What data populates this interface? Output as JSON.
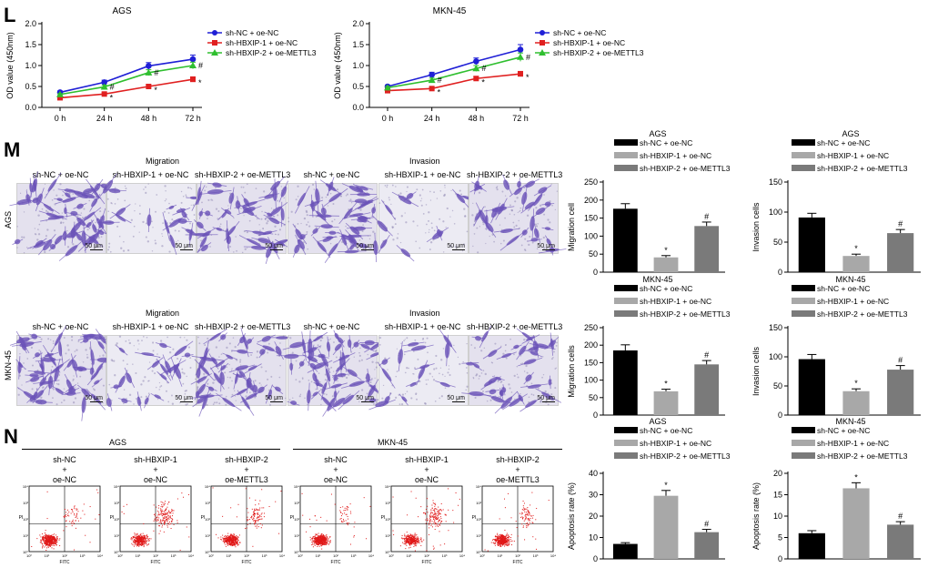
{
  "panel_labels": {
    "L": "L",
    "M": "M",
    "N": "N"
  },
  "colors": {
    "black": "#000000",
    "blue": "#1f1fd6",
    "red": "#e02020",
    "green": "#2fbf2f",
    "bar1": "#000000",
    "bar2": "#a8a8a8",
    "bar3": "#7a7a7a",
    "stain": "#6a52b8"
  },
  "m_panel": {
    "sections": [
      "Migration",
      "Invasion"
    ],
    "columns": [
      "sh-NC + oe-NC",
      "sh-HBXIP-1 + oe-NC",
      "sh-HBXIP-2 + oe-METTL3",
      "sh-NC + oe-NC",
      "sh-HBXIP-1 + oe-NC",
      "sh-HBXIP-2 + oe-METTL3"
    ],
    "rows": [
      "AGS",
      "MKN-45"
    ],
    "scale_bar": "50 μm"
  },
  "n_panel": {
    "cell_lines": [
      "AGS",
      "MKN-45"
    ],
    "headers": [
      [
        "sh-NC",
        "+",
        "oe-NC"
      ],
      [
        "sh-HBXIP-1",
        "+",
        "oe-NC"
      ],
      [
        "sh-HBXIP-2",
        "+",
        "oe-METTL3"
      ]
    ],
    "xaxis": "FITC",
    "yaxis": "PI",
    "ticks": [
      "10⁰",
      "10¹",
      "10²",
      "10³",
      "10⁴"
    ]
  },
  "chart_data": [
    {
      "type": "line",
      "title": "AGS",
      "xlabel": "",
      "ylabel": "OD value (450nm)",
      "x": [
        "0 h",
        "24 h",
        "48 h",
        "72 h"
      ],
      "ylim": [
        0.0,
        2.0
      ],
      "yticks": [
        0.0,
        0.5,
        1.0,
        1.5,
        2.0
      ],
      "legend_position": "right",
      "series": [
        {
          "name": "sh-NC + oe-NC",
          "color": "#1f1fd6",
          "marker": "circle",
          "values": [
            0.36,
            0.6,
            0.99,
            1.15
          ],
          "errors": [
            0.03,
            0.05,
            0.08,
            0.1
          ],
          "marks": [
            "",
            "",
            "",
            ""
          ]
        },
        {
          "name": "sh-HBXIP-1 + oe-NC",
          "color": "#e02020",
          "marker": "square",
          "values": [
            0.23,
            0.32,
            0.5,
            0.67
          ],
          "errors": [
            0.02,
            0.03,
            0.04,
            0.06
          ],
          "marks": [
            "",
            "*",
            "*",
            "*"
          ]
        },
        {
          "name": "sh-HBXIP-2 + oe-METTL3",
          "color": "#2fbf2f",
          "marker": "triangle",
          "values": [
            0.31,
            0.49,
            0.83,
            1.0
          ],
          "errors": [
            0.02,
            0.04,
            0.07,
            0.08
          ],
          "marks": [
            "",
            "#",
            "#",
            "#"
          ]
        }
      ]
    },
    {
      "type": "line",
      "title": "MKN-45",
      "xlabel": "",
      "ylabel": "OD value (450nm)",
      "x": [
        "0 h",
        "24 h",
        "48 h",
        "72 h"
      ],
      "ylim": [
        0.0,
        2.0
      ],
      "yticks": [
        0.0,
        0.5,
        1.0,
        1.5,
        2.0
      ],
      "legend_position": "right",
      "series": [
        {
          "name": "sh-NC + oe-NC",
          "color": "#1f1fd6",
          "marker": "circle",
          "values": [
            0.5,
            0.78,
            1.1,
            1.38
          ],
          "errors": [
            0.03,
            0.06,
            0.08,
            0.12
          ],
          "marks": [
            "",
            "",
            "",
            ""
          ]
        },
        {
          "name": "sh-HBXIP-1 + oe-NC",
          "color": "#e02020",
          "marker": "square",
          "values": [
            0.4,
            0.45,
            0.69,
            0.8
          ],
          "errors": [
            0.02,
            0.03,
            0.05,
            0.06
          ],
          "marks": [
            "",
            "*",
            "*",
            "*"
          ]
        },
        {
          "name": "sh-HBXIP-2 + oe-METTL3",
          "color": "#2fbf2f",
          "marker": "triangle",
          "values": [
            0.47,
            0.65,
            0.93,
            1.2
          ],
          "errors": [
            0.03,
            0.05,
            0.07,
            0.1
          ],
          "marks": [
            "",
            "#",
            "#",
            "#"
          ]
        }
      ]
    },
    {
      "type": "bar",
      "title": "AGS",
      "ylabel": "Migration cell",
      "categories": [
        "sh-NC + oe-NC",
        "sh-HBXIP-1 + oe-NC",
        "sh-HBXIP-2 + oe-METTL3"
      ],
      "values": [
        176,
        41,
        128
      ],
      "errors": [
        14,
        5,
        11
      ],
      "marks": [
        "",
        "*",
        "#"
      ],
      "ylim": [
        0,
        250
      ],
      "yticks": [
        0,
        50,
        100,
        150,
        200,
        250
      ],
      "legend_position": "top"
    },
    {
      "type": "bar",
      "title": "AGS",
      "ylabel": "Invasion cells",
      "categories": [
        "sh-NC + oe-NC",
        "sh-HBXIP-1 + oe-NC",
        "sh-HBXIP-2 + oe-METTL3"
      ],
      "values": [
        91,
        27,
        65
      ],
      "errors": [
        7,
        3,
        6
      ],
      "marks": [
        "",
        "*",
        "#"
      ],
      "ylim": [
        0,
        150
      ],
      "yticks": [
        0,
        50,
        100,
        150
      ],
      "legend_position": "top"
    },
    {
      "type": "bar",
      "title": "MKN-45",
      "ylabel": "Migration cells",
      "categories": [
        "sh-NC + oe-NC",
        "sh-HBXIP-1 + oe-NC",
        "sh-HBXIP-2 + oe-METTL3"
      ],
      "values": [
        185,
        68,
        145
      ],
      "errors": [
        16,
        6,
        11
      ],
      "marks": [
        "",
        "*",
        "#"
      ],
      "ylim": [
        0,
        250
      ],
      "yticks": [
        0,
        50,
        100,
        150,
        200,
        250
      ],
      "legend_position": "top"
    },
    {
      "type": "bar",
      "title": "MKN-45",
      "ylabel": "Invasion cells",
      "categories": [
        "sh-NC + oe-NC",
        "sh-HBXIP-1 + oe-NC",
        "sh-HBXIP-2 + oe-METTL3"
      ],
      "values": [
        96,
        41,
        78
      ],
      "errors": [
        8,
        4,
        7
      ],
      "marks": [
        "",
        "*",
        "#"
      ],
      "ylim": [
        0,
        150
      ],
      "yticks": [
        0,
        50,
        100,
        150
      ],
      "legend_position": "top"
    },
    {
      "type": "bar",
      "title": "AGS",
      "ylabel": "Apoptosis rate (%)",
      "categories": [
        "sh-NC + oe-NC",
        "sh-HBXIP-1 + oe-NC",
        "sh-HBXIP-2 + oe-METTL3"
      ],
      "values": [
        7,
        29.5,
        12.5
      ],
      "errors": [
        0.6,
        2.5,
        1.3
      ],
      "marks": [
        "",
        "*",
        "#"
      ],
      "ylim": [
        0,
        40
      ],
      "yticks": [
        0,
        10,
        20,
        30,
        40
      ],
      "legend_position": "top"
    },
    {
      "type": "bar",
      "title": "MKN-45",
      "ylabel": "Apoptosis rate (%)",
      "categories": [
        "sh-NC + oe-NC",
        "sh-HBXIP-1 + oe-NC",
        "sh-HBXIP-2 + oe-METTL3"
      ],
      "values": [
        6,
        16.5,
        8
      ],
      "errors": [
        0.6,
        1.3,
        0.7
      ],
      "marks": [
        "",
        "*",
        "#"
      ],
      "ylim": [
        0,
        20
      ],
      "yticks": [
        0,
        5,
        10,
        15,
        20
      ],
      "legend_position": "top"
    }
  ]
}
